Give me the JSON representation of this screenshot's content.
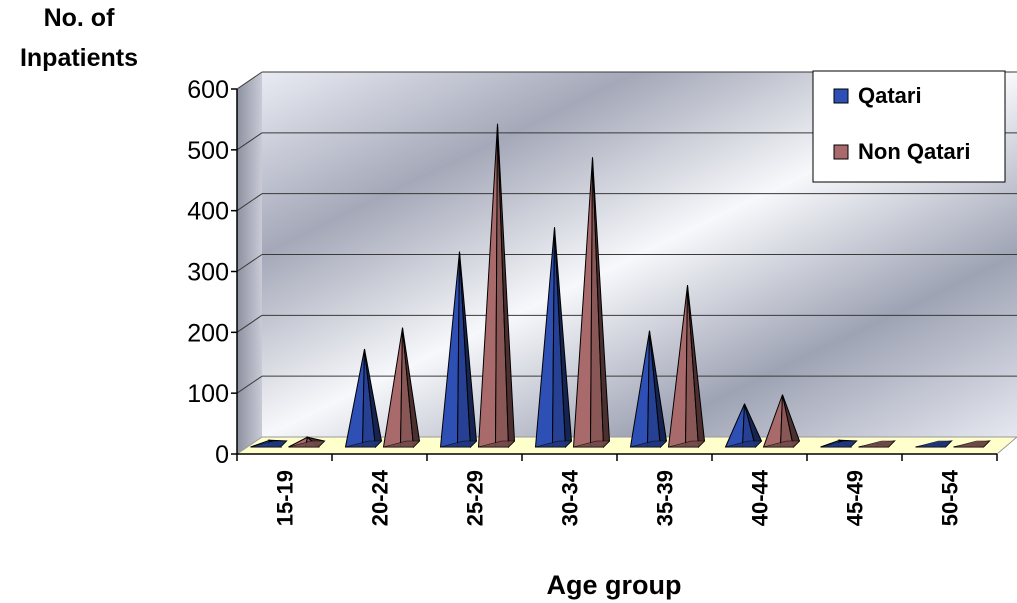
{
  "chart_data": {
    "type": "bar",
    "style": "3d-cone-pyramid",
    "ylabel_lines": [
      "No. of",
      "Inpatients"
    ],
    "xlabel": "Age group",
    "ylim": [
      0,
      600
    ],
    "yticks": [
      0,
      100,
      200,
      300,
      400,
      500,
      600
    ],
    "categories": [
      "15-19",
      "20-24",
      "25-29",
      "30-34",
      "35-39",
      "40-44",
      "45-49",
      "50-54"
    ],
    "series": [
      {
        "name": "Qatari",
        "color": "#2e4fb4",
        "values": [
          10,
          160,
          320,
          360,
          190,
          70,
          10,
          5
        ]
      },
      {
        "name": "Non Qatari",
        "color": "#a86a6a",
        "values": [
          15,
          195,
          530,
          475,
          265,
          85,
          5,
          5
        ]
      }
    ],
    "grid": true,
    "legend_position": "top-right"
  }
}
